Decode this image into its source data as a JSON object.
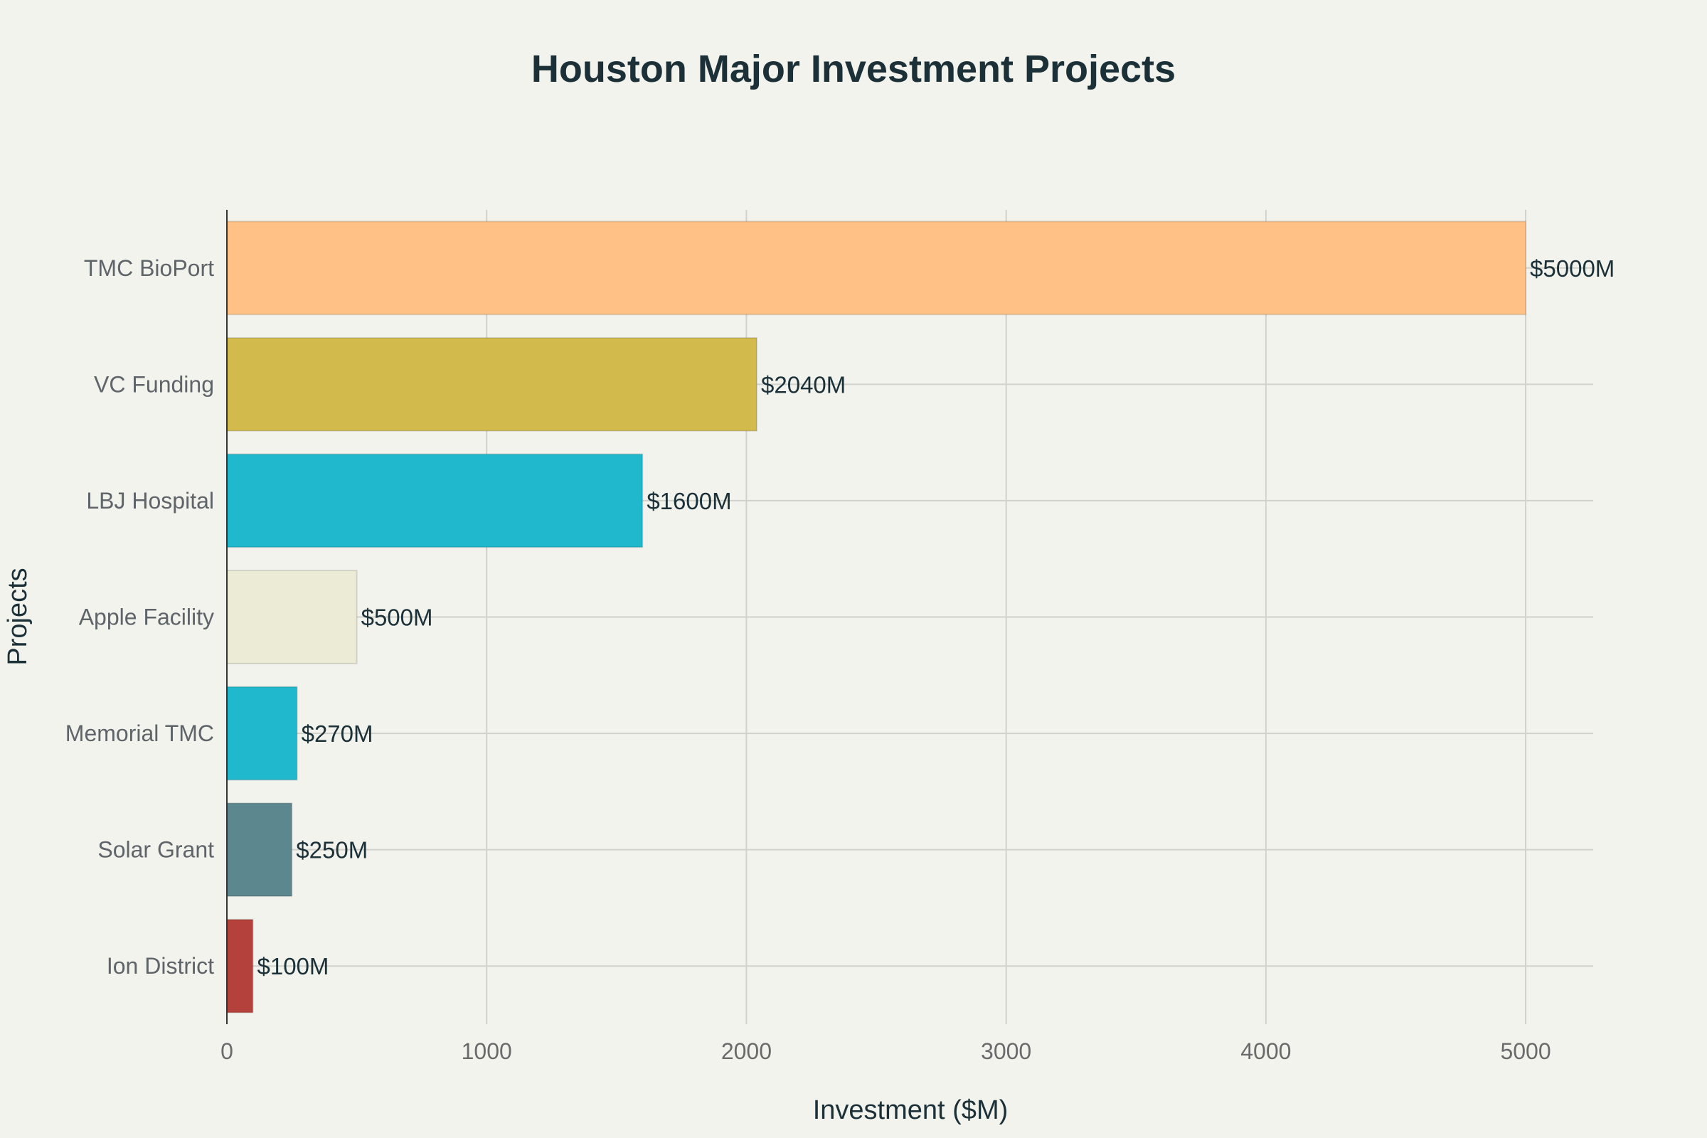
{
  "chart_data": {
    "type": "bar",
    "orientation": "horizontal",
    "title": "Houston Major Investment Projects",
    "xlabel": "Investment ($M)",
    "ylabel": "Projects",
    "xlim": [
      0,
      5260
    ],
    "xticks": [
      0,
      1000,
      2000,
      3000,
      4000,
      5000
    ],
    "xtick_labels": [
      "0",
      "1000",
      "2000",
      "3000",
      "4000",
      "5000"
    ],
    "grid": true,
    "categories": [
      "TMC BioPort",
      "VC Funding",
      "LBJ Hospital",
      "Apple Facility",
      "Memorial TMC",
      "Solar Grant",
      "Ion District"
    ],
    "values": [
      5000,
      2040,
      1600,
      500,
      270,
      250,
      100
    ],
    "data_labels": [
      "$5000M",
      "$2040M",
      "$1600M",
      "$500M",
      "$270M",
      "$250M",
      "$100M"
    ],
    "colors": [
      "#ffc185",
      "#d2ba4c",
      "#1fb8cd",
      "#ecebd5",
      "#1fb8cd",
      "#5d878f",
      "#b4413c"
    ]
  }
}
